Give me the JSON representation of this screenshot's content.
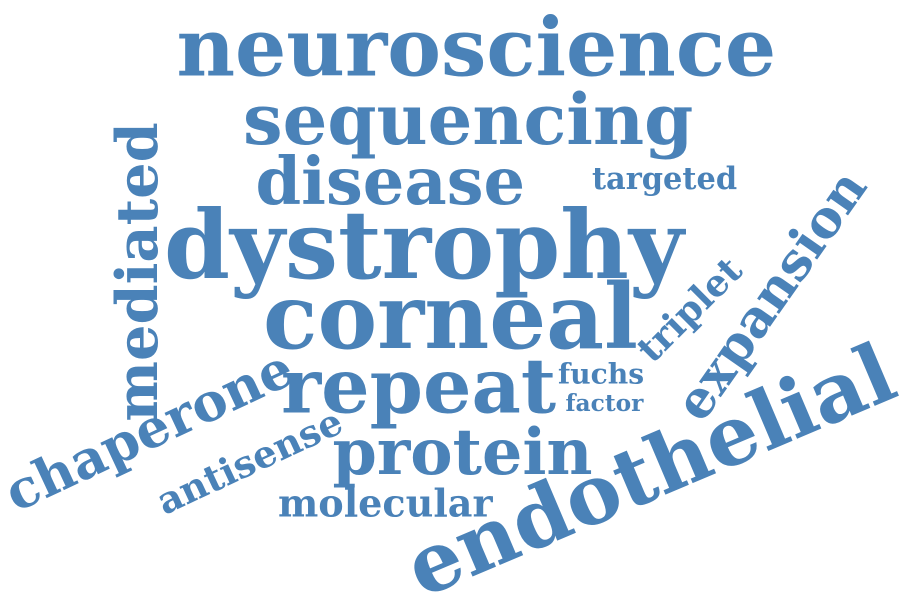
{
  "color": "#4a82b8",
  "words": {
    "neuroscience": "neuroscience",
    "sequencing": "sequencing",
    "disease": "disease",
    "targeted": "targeted",
    "dystrophy": "dystrophy",
    "corneal": "corneal",
    "repeat": "repeat",
    "fuchs": "fuchs",
    "factor": "factor",
    "protein": "protein",
    "molecular": "molecular",
    "mediated": "mediated",
    "chaperone": "chaperone",
    "antisense": "antisense",
    "triplet": "triplet",
    "expansion": "expansion",
    "endothelial": "endothelial"
  }
}
